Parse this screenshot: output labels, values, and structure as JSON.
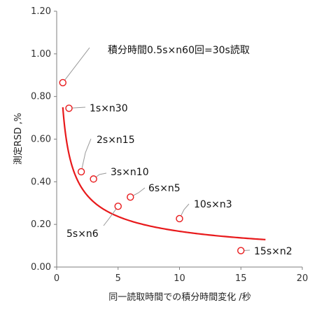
{
  "chart_data": {
    "type": "scatter",
    "title": "",
    "xlabel": "同一読取時間での積分時間変化 /秒",
    "ylabel": "測定RSD ,%",
    "xlim": [
      0,
      20
    ],
    "ylim": [
      0,
      1.2
    ],
    "x_ticks": [
      "0",
      "5",
      "10",
      "15",
      "20"
    ],
    "y_ticks": [
      "0.00",
      "0.20",
      "0.40",
      "0.60",
      "0.80",
      "1.00",
      "1.20"
    ],
    "grid": false,
    "legend": "none",
    "colors": {
      "accent": "#e8191b",
      "leader": "#999999",
      "axis": "#7f7f7f"
    },
    "points": [
      {
        "x": 0.5,
        "y": 0.865,
        "label": "積分時間0.5s×n60回=30s読取"
      },
      {
        "x": 1,
        "y": 0.745,
        "label": "1s×n30"
      },
      {
        "x": 2,
        "y": 0.447,
        "label": "2s×n15"
      },
      {
        "x": 3,
        "y": 0.413,
        "label": "3s×n10"
      },
      {
        "x": 5,
        "y": 0.285,
        "label": "5s×n6"
      },
      {
        "x": 6,
        "y": 0.328,
        "label": "6s×n5"
      },
      {
        "x": 10,
        "y": 0.227,
        "label": "10s×n3"
      },
      {
        "x": 15,
        "y": 0.077,
        "label": "15s×n2"
      }
    ],
    "trend": {
      "type": "power",
      "a": 0.53,
      "b": -0.5,
      "x_range": [
        0.5,
        17
      ]
    }
  }
}
